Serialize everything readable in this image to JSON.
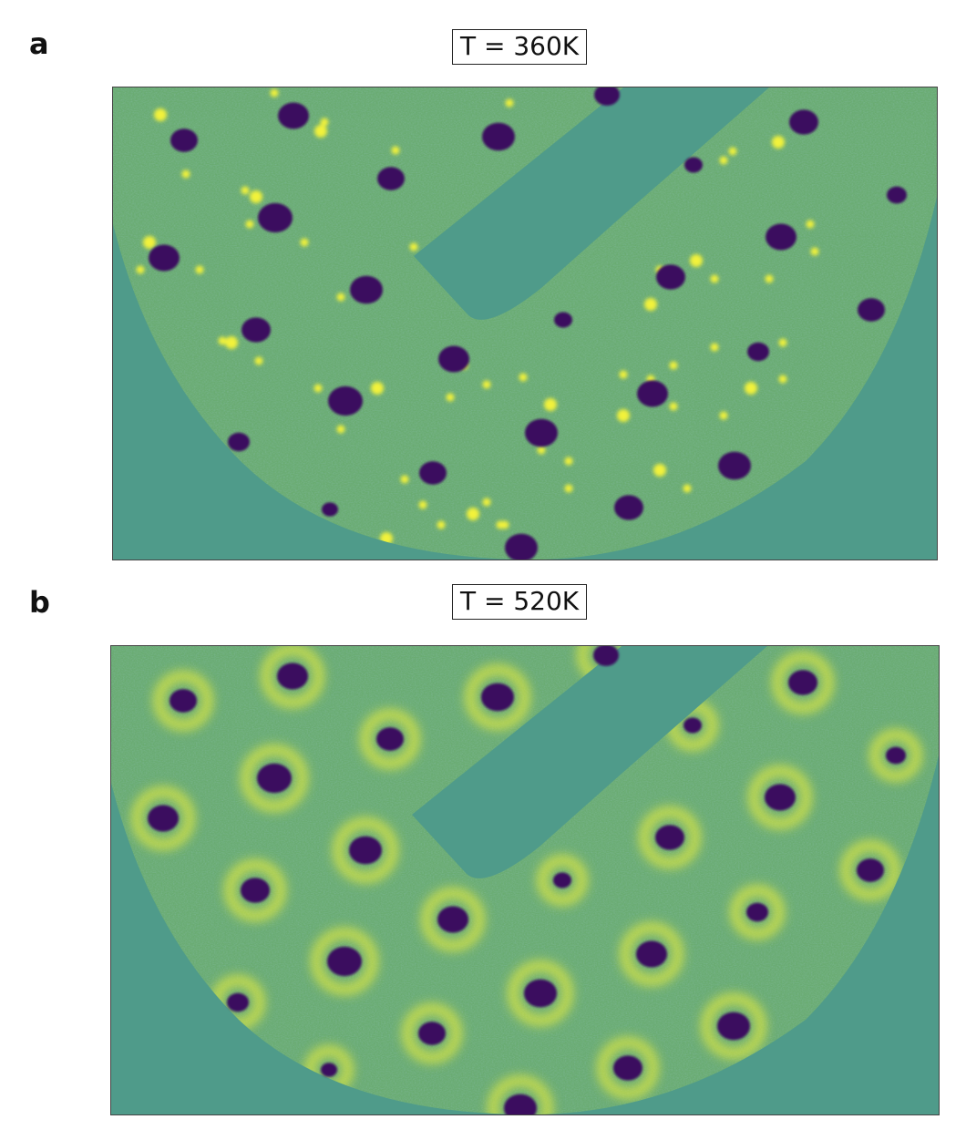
{
  "panels": [
    {
      "letter": "a",
      "temperature_label": "T = 360K"
    },
    {
      "letter": "b",
      "temperature_label": "T = 520K"
    }
  ],
  "colors": {
    "background": "#4f9b8a",
    "dark_spot": "#3b0d5e",
    "bright_spot": "#f2f23a",
    "texture_blue": "#3e5f9e",
    "texture_green": "#73c35f"
  }
}
